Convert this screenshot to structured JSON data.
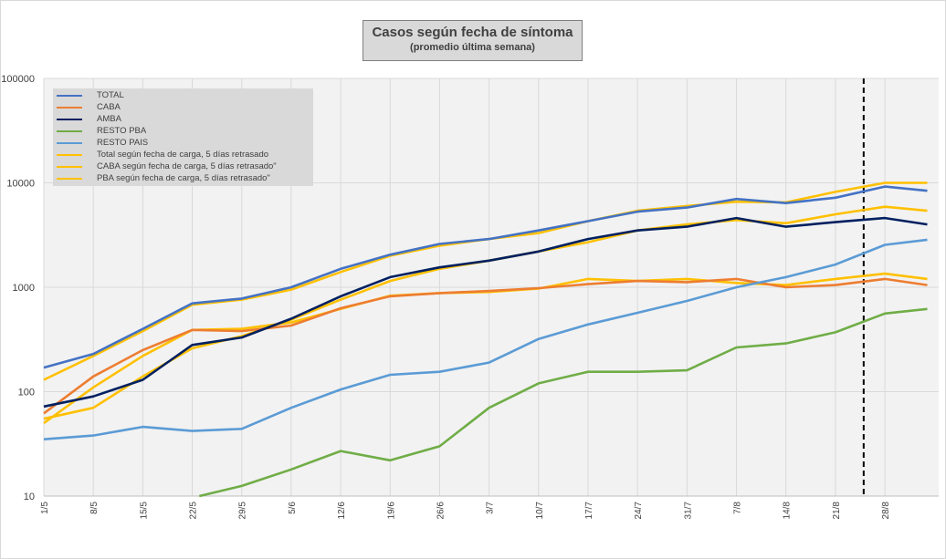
{
  "chart_data": {
    "type": "line",
    "title": "Casos según fecha de síntoma",
    "subtitle": "(promedio última semana)",
    "yscale": "log",
    "ylim": [
      10,
      100000
    ],
    "yticks": [
      "10",
      "100",
      "1000",
      "10000",
      "100000"
    ],
    "grid": true,
    "legend_position": "top-left",
    "xlabels": [
      "1/5",
      "8/5",
      "15/5",
      "22/5",
      "29/5",
      "5/6",
      "12/6",
      "19/6",
      "26/6",
      "3/7",
      "10/7",
      "17/7",
      "24/7",
      "31/7",
      "7/8",
      "14/8",
      "21/8",
      "28/8"
    ],
    "x_start": "1/5",
    "x_end": "3/9",
    "vline_date": "25/8",
    "series": [
      {
        "name": "TOTAL",
        "color": "#4472c4",
        "values": [
          [
            0,
            170
          ],
          [
            7,
            230
          ],
          [
            14,
            400
          ],
          [
            21,
            700
          ],
          [
            28,
            780
          ],
          [
            35,
            1000
          ],
          [
            42,
            1500
          ],
          [
            49,
            2050
          ],
          [
            56,
            2600
          ],
          [
            63,
            2900
          ],
          [
            70,
            3500
          ],
          [
            77,
            4300
          ],
          [
            84,
            5300
          ],
          [
            91,
            5800
          ],
          [
            98,
            7000
          ],
          [
            105,
            6400
          ],
          [
            112,
            7200
          ],
          [
            119,
            9200
          ],
          [
            125,
            8400
          ]
        ]
      },
      {
        "name": "CABA",
        "color": "#ed7d31",
        "values": [
          [
            0,
            62
          ],
          [
            7,
            140
          ],
          [
            14,
            250
          ],
          [
            21,
            390
          ],
          [
            28,
            380
          ],
          [
            35,
            430
          ],
          [
            42,
            630
          ],
          [
            49,
            820
          ],
          [
            56,
            880
          ],
          [
            63,
            920
          ],
          [
            70,
            980
          ],
          [
            77,
            1070
          ],
          [
            84,
            1150
          ],
          [
            91,
            1120
          ],
          [
            98,
            1200
          ],
          [
            105,
            1000
          ],
          [
            112,
            1050
          ],
          [
            119,
            1200
          ],
          [
            125,
            1050
          ]
        ]
      },
      {
        "name": "AMBA",
        "color": "#002060",
        "values": [
          [
            0,
            72
          ],
          [
            7,
            90
          ],
          [
            14,
            130
          ],
          [
            21,
            280
          ],
          [
            28,
            330
          ],
          [
            35,
            500
          ],
          [
            42,
            820
          ],
          [
            49,
            1250
          ],
          [
            56,
            1550
          ],
          [
            63,
            1800
          ],
          [
            70,
            2200
          ],
          [
            77,
            2900
          ],
          [
            84,
            3500
          ],
          [
            91,
            3800
          ],
          [
            98,
            4600
          ],
          [
            105,
            3800
          ],
          [
            112,
            4200
          ],
          [
            119,
            4600
          ],
          [
            125,
            4000
          ]
        ]
      },
      {
        "name": "RESTO PBA",
        "color": "#70ad47",
        "values": [
          [
            22,
            10
          ],
          [
            28,
            12.5
          ],
          [
            35,
            18
          ],
          [
            42,
            27
          ],
          [
            49,
            22
          ],
          [
            56,
            30
          ],
          [
            63,
            70
          ],
          [
            70,
            120
          ],
          [
            77,
            155
          ],
          [
            84,
            155
          ],
          [
            91,
            160
          ],
          [
            98,
            265
          ],
          [
            105,
            290
          ],
          [
            112,
            370
          ],
          [
            119,
            560
          ],
          [
            125,
            620
          ]
        ]
      },
      {
        "name": "RESTO PAIS",
        "color": "#5b9bd5",
        "values": [
          [
            0,
            35
          ],
          [
            7,
            38
          ],
          [
            14,
            46
          ],
          [
            21,
            42
          ],
          [
            28,
            44
          ],
          [
            35,
            70
          ],
          [
            42,
            105
          ],
          [
            49,
            145
          ],
          [
            56,
            155
          ],
          [
            63,
            190
          ],
          [
            70,
            320
          ],
          [
            77,
            440
          ],
          [
            84,
            570
          ],
          [
            91,
            740
          ],
          [
            98,
            1000
          ],
          [
            105,
            1250
          ],
          [
            112,
            1650
          ],
          [
            119,
            2550
          ],
          [
            125,
            2850
          ]
        ]
      },
      {
        "name": "Total según fecha de carga, 5 días retrasado",
        "color": "#ffc000",
        "values": [
          [
            0,
            130
          ],
          [
            7,
            220
          ],
          [
            14,
            380
          ],
          [
            21,
            680
          ],
          [
            28,
            760
          ],
          [
            35,
            950
          ],
          [
            42,
            1400
          ],
          [
            49,
            2000
          ],
          [
            56,
            2500
          ],
          [
            63,
            2900
          ],
          [
            70,
            3300
          ],
          [
            77,
            4300
          ],
          [
            84,
            5400
          ],
          [
            91,
            6000
          ],
          [
            98,
            6600
          ],
          [
            105,
            6500
          ],
          [
            112,
            8200
          ],
          [
            119,
            10000
          ],
          [
            125,
            10000
          ]
        ]
      },
      {
        "name": "CABA según fecha de carga, 5 días retrasado\"",
        "color": "#ffc000",
        "values": [
          [
            0,
            50
          ],
          [
            7,
            110
          ],
          [
            14,
            220
          ],
          [
            21,
            390
          ],
          [
            28,
            400
          ],
          [
            35,
            460
          ],
          [
            42,
            620
          ],
          [
            49,
            830
          ],
          [
            56,
            880
          ],
          [
            63,
            900
          ],
          [
            70,
            970
          ],
          [
            77,
            1200
          ],
          [
            84,
            1150
          ],
          [
            91,
            1200
          ],
          [
            98,
            1100
          ],
          [
            105,
            1050
          ],
          [
            112,
            1200
          ],
          [
            119,
            1350
          ],
          [
            125,
            1200
          ]
        ]
      },
      {
        "name": "PBA según fecha de carga, 5 días retrasado\"",
        "color": "#ffc000",
        "values": [
          [
            0,
            55
          ],
          [
            7,
            70
          ],
          [
            14,
            140
          ],
          [
            21,
            260
          ],
          [
            28,
            340
          ],
          [
            35,
            490
          ],
          [
            42,
            760
          ],
          [
            49,
            1150
          ],
          [
            56,
            1500
          ],
          [
            63,
            1800
          ],
          [
            70,
            2200
          ],
          [
            77,
            2700
          ],
          [
            84,
            3500
          ],
          [
            91,
            4000
          ],
          [
            98,
            4400
          ],
          [
            105,
            4100
          ],
          [
            112,
            5000
          ],
          [
            119,
            5900
          ],
          [
            125,
            5400
          ]
        ]
      }
    ]
  }
}
